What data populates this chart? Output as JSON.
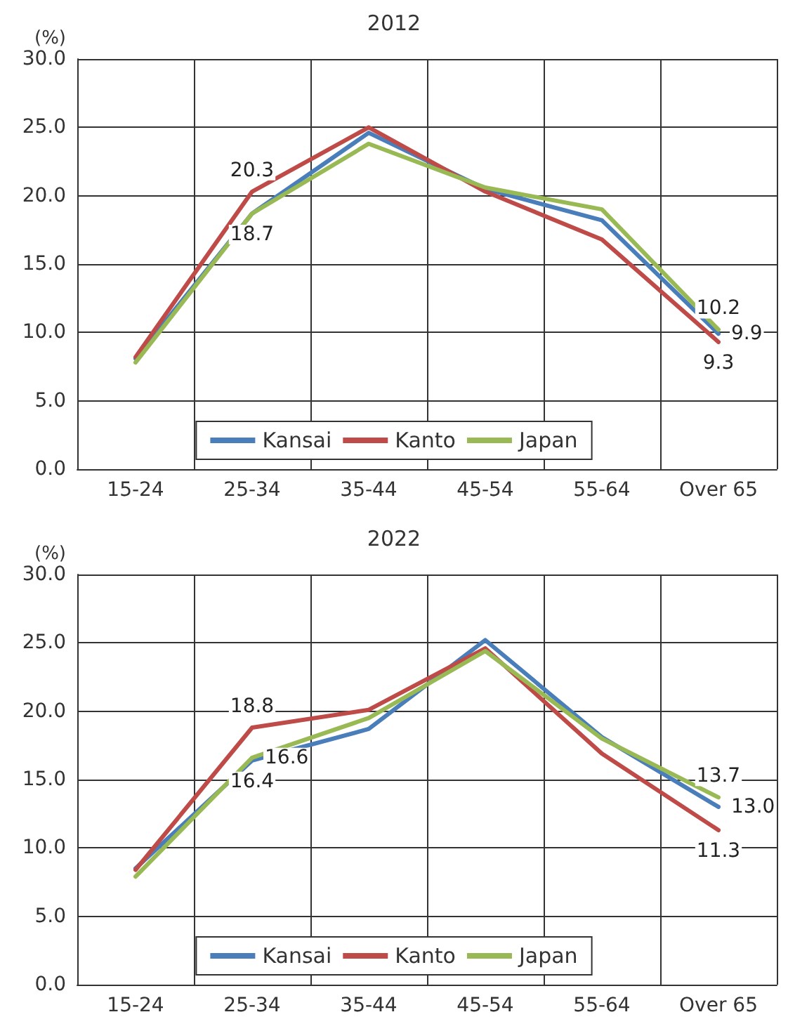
{
  "chart_data": [
    {
      "type": "line",
      "title": "2012",
      "ylabel": "(%)",
      "categories": [
        "15-24",
        "25-34",
        "35-44",
        "45-54",
        "55-64",
        "Over 65"
      ],
      "series": [
        {
          "name": "Kansai",
          "color": "#4a7ebb",
          "values": [
            8.1,
            18.7,
            24.6,
            20.5,
            18.2,
            9.9
          ],
          "value_labels": [
            null,
            "18.7",
            null,
            null,
            null,
            "9.9"
          ]
        },
        {
          "name": "Kanto",
          "color": "#be4b48",
          "values": [
            8.2,
            20.3,
            25.0,
            20.3,
            16.8,
            9.3
          ],
          "value_labels": [
            null,
            "20.3",
            null,
            null,
            null,
            "9.3"
          ]
        },
        {
          "name": "Japan",
          "color": "#98b954",
          "values": [
            7.8,
            18.7,
            23.8,
            20.6,
            19.0,
            10.2
          ],
          "value_labels": [
            null,
            null,
            null,
            null,
            null,
            "10.2"
          ]
        }
      ],
      "ylim": [
        0,
        30
      ],
      "yticks": [
        {
          "value": 0,
          "label": "0.0"
        },
        {
          "value": 5,
          "label": "5.0"
        },
        {
          "value": 10,
          "label": "10.0"
        },
        {
          "value": 15,
          "label": "15.0"
        },
        {
          "value": 20,
          "label": "20.0"
        },
        {
          "value": 25,
          "label": "25.0"
        },
        {
          "value": 30,
          "label": "30.0"
        }
      ],
      "grid": true,
      "legend": "bottom",
      "marker": "none",
      "line_style": "solid"
    },
    {
      "type": "line",
      "title": "2022",
      "ylabel": "(%)",
      "categories": [
        "15-24",
        "25-34",
        "35-44",
        "45-54",
        "55-64",
        "Over 65"
      ],
      "series": [
        {
          "name": "Kansai",
          "color": "#4a7ebb",
          "values": [
            8.5,
            16.4,
            18.7,
            25.2,
            18.1,
            13.0
          ],
          "value_labels": [
            null,
            "16.4",
            null,
            null,
            null,
            "13.0"
          ]
        },
        {
          "name": "Kanto",
          "color": "#be4b48",
          "values": [
            8.4,
            18.8,
            20.1,
            24.6,
            16.9,
            11.3
          ],
          "value_labels": [
            null,
            "18.8",
            null,
            null,
            null,
            "11.3"
          ]
        },
        {
          "name": "Japan",
          "color": "#98b954",
          "values": [
            7.9,
            16.6,
            19.5,
            24.4,
            18.0,
            13.7
          ],
          "value_labels": [
            null,
            "16.6",
            null,
            null,
            null,
            "13.7"
          ]
        }
      ],
      "ylim": [
        0,
        30
      ],
      "yticks": [
        {
          "value": 0,
          "label": "0.0"
        },
        {
          "value": 5,
          "label": "5.0"
        },
        {
          "value": 10,
          "label": "10.0"
        },
        {
          "value": 15,
          "label": "15.0"
        },
        {
          "value": 20,
          "label": "20.0"
        },
        {
          "value": 25,
          "label": "25.0"
        },
        {
          "value": 30,
          "label": "30.0"
        }
      ],
      "grid": true,
      "legend": "bottom",
      "marker": "none",
      "line_style": "solid"
    }
  ]
}
